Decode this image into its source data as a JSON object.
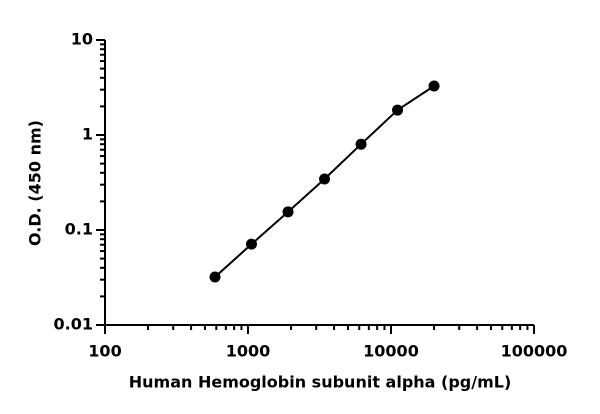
{
  "chart_data": {
    "type": "line",
    "x_label": "Human Hemoglobin subunit alpha (pg/mL)",
    "y_label": "O.D. (450 nm)",
    "x": [
      588,
      1058,
      1905,
      3429,
      6173,
      11111,
      20000
    ],
    "series": [
      {
        "color": "#000000",
        "values": [
          0.032,
          0.071,
          0.155,
          0.344,
          0.8,
          1.83,
          3.28
        ]
      }
    ],
    "xscale": "log",
    "yscale": "log",
    "xlim": [
      100,
      100000
    ],
    "ylim": [
      0.01,
      10
    ],
    "xticks": [
      100,
      1000,
      10000,
      100000
    ],
    "yticks": [
      0.01,
      0.1,
      1,
      10
    ]
  }
}
